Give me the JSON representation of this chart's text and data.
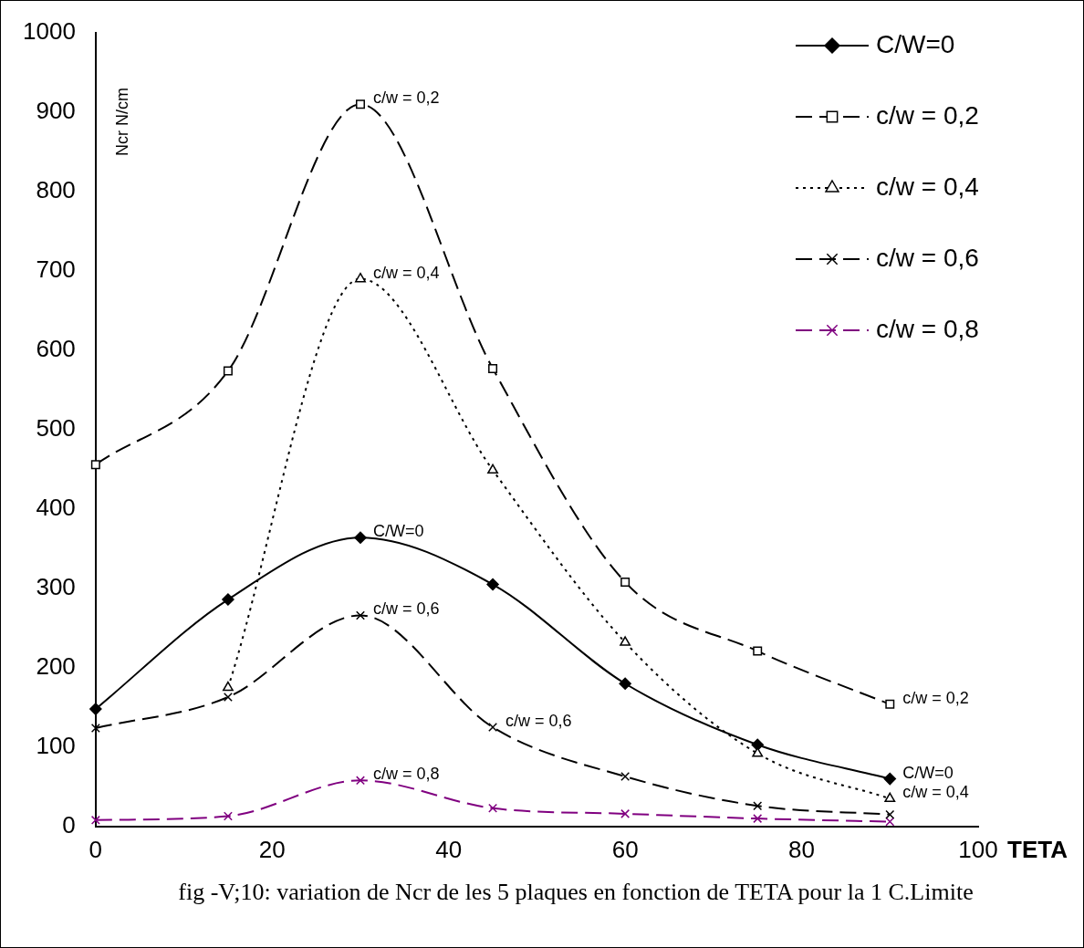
{
  "chart_data": {
    "type": "line",
    "xlabel": "TETA",
    "ylabel": "Ncr N/cm",
    "x": [
      0,
      15,
      30,
      45,
      60,
      75,
      90
    ],
    "xlim": [
      0,
      100
    ],
    "xticks": [
      0,
      20,
      40,
      60,
      80,
      100
    ],
    "ylim": [
      0,
      1000
    ],
    "yticks": [
      0,
      100,
      200,
      300,
      400,
      500,
      600,
      700,
      800,
      900,
      1000
    ],
    "grid": false,
    "legend": "top right",
    "series": [
      {
        "name": "C/W=0",
        "color": "#000000",
        "marker": "diamond",
        "line_style": "solid",
        "values": [
          148,
          286,
          364,
          305,
          180,
          103,
          60
        ]
      },
      {
        "name": "c/w = 0,2",
        "color": "#000000",
        "marker": "square",
        "line_style": "dashed",
        "values": [
          456,
          574,
          910,
          577,
          308,
          221,
          154
        ]
      },
      {
        "name": "c/w = 0,4",
        "color": "#000000",
        "marker": "triangle",
        "line_style": "dotted",
        "values": [
          null,
          175,
          690,
          449,
          232,
          92,
          35
        ]
      },
      {
        "name": "c/w = 0,6",
        "color": "#000000",
        "marker": "cross",
        "line_style": "dashed",
        "values": [
          124,
          163,
          266,
          125,
          63,
          26,
          15
        ]
      },
      {
        "name": "c/w = 0,8",
        "color": "#800080",
        "marker": "cross",
        "line_style": "dashed",
        "values": [
          8,
          13,
          58,
          23,
          16,
          10,
          6
        ]
      }
    ],
    "annotations": [
      {
        "text": "c/w = 0,2",
        "x": 30,
        "y": 910
      },
      {
        "text": "c/w = 0,4",
        "x": 30,
        "y": 690
      },
      {
        "text": "C/W=0",
        "x": 30,
        "y": 364
      },
      {
        "text": "c/w = 0,6",
        "x": 30,
        "y": 266
      },
      {
        "text": "c/w = 0,8",
        "x": 30,
        "y": 58
      },
      {
        "text": "c/w = 0,6",
        "x": 45,
        "y": 125
      },
      {
        "text": "c/w = 0,2",
        "x": 90,
        "y": 154
      },
      {
        "text": "C/W=0",
        "x": 90,
        "y": 60
      },
      {
        "text": "c/w = 0,4",
        "x": 90,
        "y": 35
      },
      "fig -V;10: variation de Ncr de les 5 plaques en fonction de TETA pour la 1 C.Limite"
    ]
  }
}
